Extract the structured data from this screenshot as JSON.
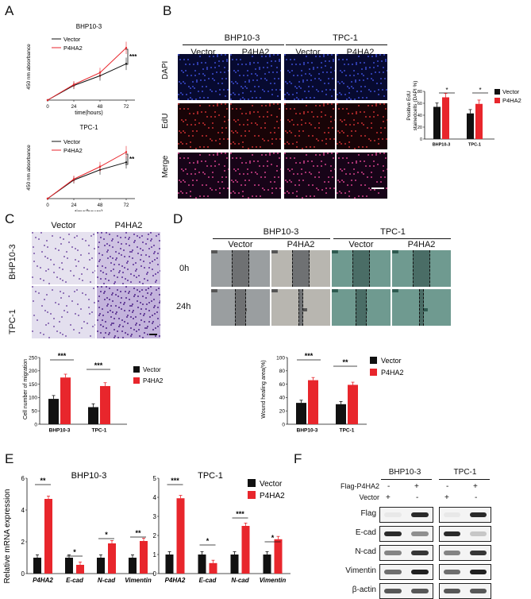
{
  "panel_labels": {
    "A": "A",
    "B": "B",
    "C": "C",
    "D": "D",
    "E": "E",
    "F": "F"
  },
  "colors": {
    "vector": "#111111",
    "p4ha2": "#e8262c",
    "dapi": "#1b2a9a",
    "edu": "#b0202a"
  },
  "legend": {
    "vector": "Vector",
    "p4ha2": "P4HA2"
  },
  "sig": {
    "a1": "***",
    "a2": "**",
    "b1": "*",
    "b2": "*",
    "c1": "***",
    "c2": "***",
    "d1": "***",
    "d2": "**"
  },
  "panel_a": {
    "ylabel": "450 nm absorbance",
    "xlabel": "time(hours)",
    "charts": [
      {
        "title": "BHP10-3"
      },
      {
        "title": "TPC-1"
      }
    ]
  },
  "panel_b": {
    "group1": "BHP10-3",
    "group2": "TPC-1",
    "cols": [
      "Vector",
      "P4HA2",
      "Vector",
      "P4HA2"
    ],
    "rows": [
      "DAPI",
      "EdU",
      "Merge"
    ],
    "ylabel_line1": "Positive EdU",
    "ylabel_line2": "stainedcells (DAPI %)"
  },
  "panel_c": {
    "cols": [
      "Vector",
      "P4HA2"
    ],
    "rows": [
      "BHP10-3",
      "TPC-1"
    ],
    "ylabel": "Cell number of migration"
  },
  "panel_d": {
    "group1": "BHP10-3",
    "group2": "TPC-1",
    "cols": [
      "Vector",
      "P4HA2",
      "Vector",
      "P4HA2"
    ],
    "rows": [
      "0h",
      "24h"
    ],
    "ylabel": "Wound healing area(%)"
  },
  "panel_e": {
    "title1": "BHP10-3",
    "title2": "TPC-1",
    "ylabel": "Relative mRNA expression",
    "sig1": [
      "**",
      "*",
      "*",
      "**"
    ],
    "sig2": [
      "***",
      "*",
      "***",
      "*"
    ]
  },
  "panel_f": {
    "group1": "BHP10-3",
    "group2": "TPC-1",
    "flag_label": "Flag-P4HA2",
    "vector_label": "Vector",
    "signs_flag": [
      "-",
      "+",
      "-",
      "+"
    ],
    "signs_vector": [
      "+",
      "-",
      "+",
      "-"
    ],
    "bands": [
      "Flag",
      "E-cad",
      "N-cad",
      "Vimentin",
      "β-actin"
    ]
  },
  "chart_data": [
    {
      "type": "line",
      "title": "BHP10-3",
      "xlabel": "time(hours)",
      "ylabel": "450 nm absorbance",
      "x": [
        0,
        24,
        48,
        72
      ],
      "series": [
        {
          "name": "Vector",
          "values": [
            0,
            0.33,
            0.55,
            0.82
          ]
        },
        {
          "name": "P4HA2",
          "values": [
            0,
            0.35,
            0.62,
            1.18
          ]
        }
      ],
      "xticks": [
        "0",
        "24",
        "48",
        "72"
      ]
    },
    {
      "type": "line",
      "title": "TPC-1",
      "xlabel": "time(hours)",
      "ylabel": "450 nm absorbance",
      "x": [
        0,
        24,
        48,
        72
      ],
      "series": [
        {
          "name": "Vector",
          "values": [
            0,
            0.42,
            0.65,
            0.82
          ]
        },
        {
          "name": "P4HA2",
          "values": [
            0,
            0.44,
            0.72,
            1.05
          ]
        }
      ],
      "xticks": [
        "0",
        "24",
        "48",
        "72"
      ]
    },
    {
      "type": "bar",
      "categories": [
        "BHP10-3",
        "TPC-1"
      ],
      "ylabel": "Positive EdU stainedcells (DAPI %)",
      "yticks": [
        "0",
        "20",
        "40",
        "60",
        "80"
      ],
      "ylim": [
        0,
        80
      ],
      "series": [
        {
          "name": "Vector",
          "values": [
            54,
            43
          ]
        },
        {
          "name": "P4HA2",
          "values": [
            70,
            59
          ]
        }
      ]
    },
    {
      "type": "bar",
      "categories": [
        "BHP10-3",
        "TPC-1"
      ],
      "ylabel": "Cell number of migration",
      "yticks": [
        "0",
        "50",
        "100",
        "150",
        "200",
        "250"
      ],
      "ylim": [
        0,
        250
      ],
      "series": [
        {
          "name": "Vector",
          "values": [
            95,
            64
          ]
        },
        {
          "name": "P4HA2",
          "values": [
            175,
            143
          ]
        }
      ]
    },
    {
      "type": "bar",
      "categories": [
        "BHP10-3",
        "TPC-1"
      ],
      "ylabel": "Wound healing area(%)",
      "yticks": [
        "0",
        "20",
        "40",
        "60",
        "80",
        "100"
      ],
      "ylim": [
        0,
        100
      ],
      "series": [
        {
          "name": "Vector",
          "values": [
            32,
            30
          ]
        },
        {
          "name": "P4HA2",
          "values": [
            66,
            59
          ]
        }
      ]
    },
    {
      "type": "bar",
      "title": "BHP10-3",
      "ylabel": "Relative mRNA expression",
      "categories": [
        "P4HA2",
        "E-cad",
        "N-cad",
        "Vimentin"
      ],
      "yticks": [
        "0",
        "2",
        "4",
        "6"
      ],
      "ylim": [
        0,
        6
      ],
      "series": [
        {
          "name": "Vector",
          "values": [
            1.0,
            1.0,
            1.0,
            1.0
          ]
        },
        {
          "name": "P4HA2",
          "values": [
            4.7,
            0.55,
            1.9,
            2.05
          ]
        }
      ]
    },
    {
      "type": "bar",
      "title": "TPC-1",
      "ylabel": "Relative mRNA expression",
      "categories": [
        "P4HA2",
        "E-cad",
        "N-cad",
        "Vimentin"
      ],
      "yticks": [
        "0",
        "1",
        "2",
        "3",
        "4",
        "5"
      ],
      "ylim": [
        0,
        5
      ],
      "series": [
        {
          "name": "Vector",
          "values": [
            1.0,
            1.0,
            1.0,
            1.0
          ]
        },
        {
          "name": "P4HA2",
          "values": [
            3.95,
            0.55,
            2.5,
            1.8
          ]
        }
      ]
    }
  ]
}
